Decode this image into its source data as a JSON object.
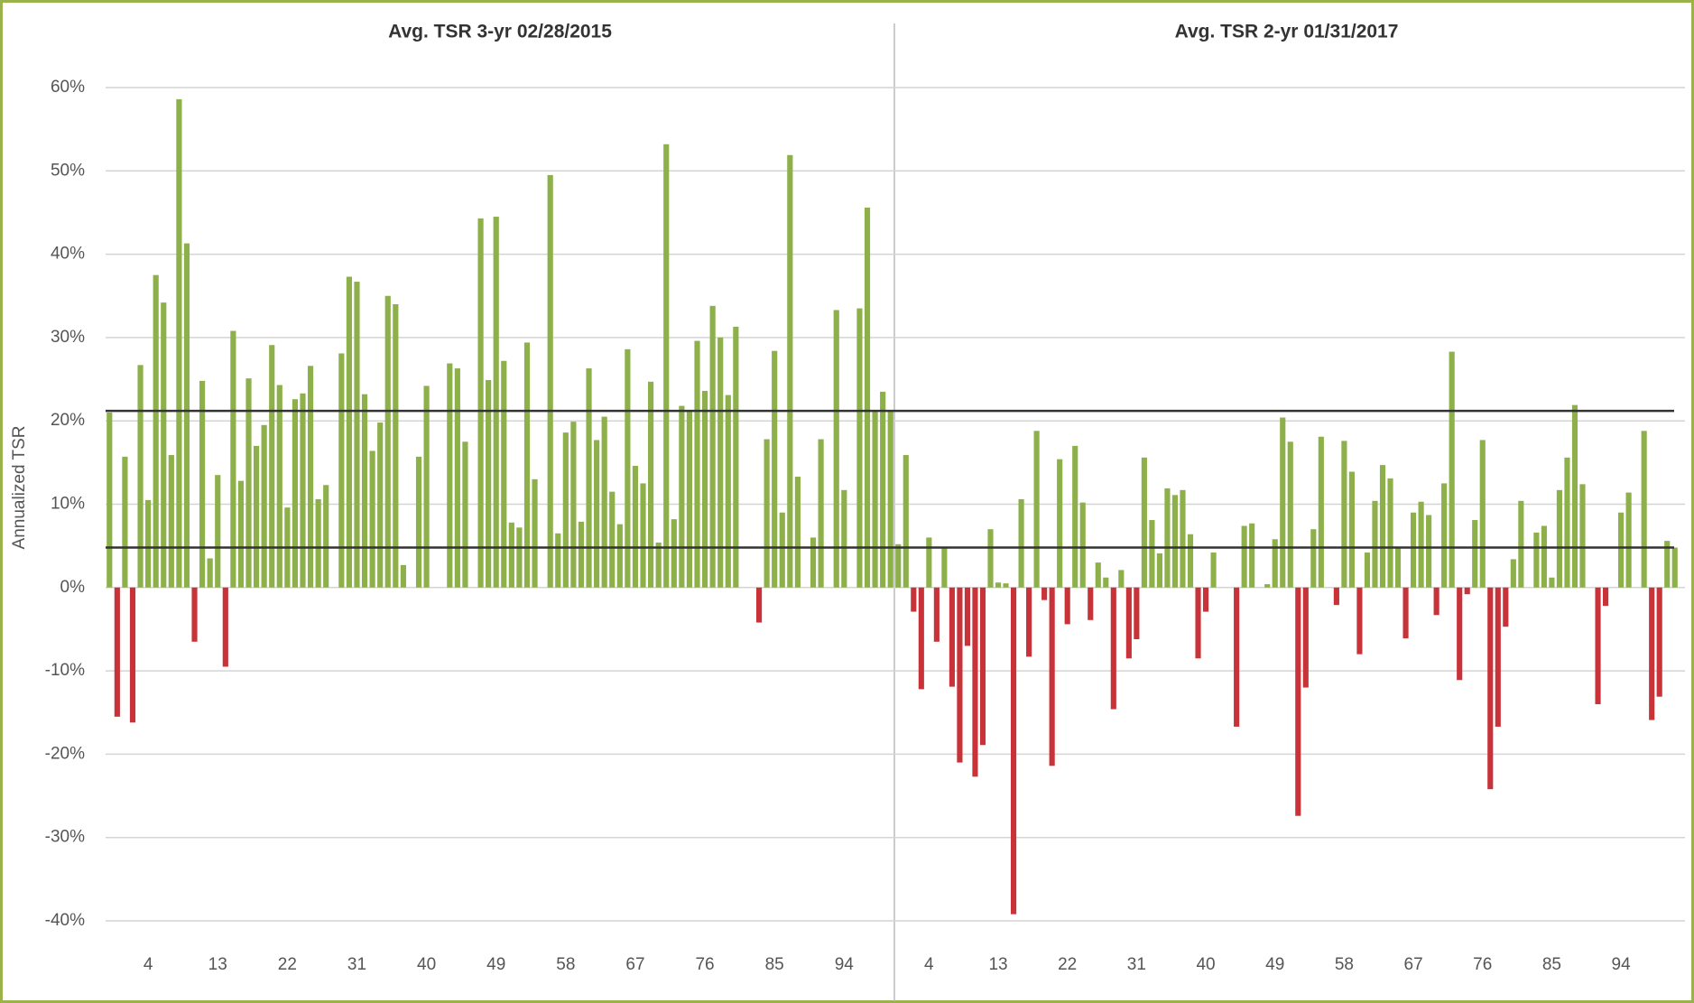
{
  "chart_data": {
    "type": "bar",
    "ylabel": "Annualized TSR",
    "ylim": [
      -40,
      60
    ],
    "yticks": [
      {
        "value": -40,
        "label": "-40%"
      },
      {
        "value": -30,
        "label": "-30%"
      },
      {
        "value": -20,
        "label": "-20%"
      },
      {
        "value": -10,
        "label": "-10%"
      },
      {
        "value": 0,
        "label": "0%"
      },
      {
        "value": 10,
        "label": "10%"
      },
      {
        "value": 20,
        "label": "20%"
      },
      {
        "value": 30,
        "label": "30%"
      },
      {
        "value": 40,
        "label": "40%"
      },
      {
        "value": 50,
        "label": "50%"
      },
      {
        "value": 60,
        "label": "60%"
      }
    ],
    "grid": true,
    "positive_color": "#8db04a",
    "negative_color": "#c8333a",
    "reference_lines": [
      21.2,
      4.8
    ],
    "panels": [
      {
        "title": "Avg. TSR 3-yr 02/28/2015",
        "categories": [
          null,
          null,
          null,
          null,
          null,
          "4",
          null,
          null,
          null,
          null,
          null,
          null,
          null,
          null,
          "13",
          null,
          null,
          null,
          null,
          null,
          null,
          null,
          null,
          "22",
          null,
          null,
          null,
          null,
          null,
          null,
          null,
          null,
          "31",
          null,
          null,
          null,
          null,
          null,
          null,
          null,
          null,
          "40",
          null,
          null,
          null,
          null,
          null,
          null,
          null,
          null,
          "49",
          null,
          null,
          null,
          null,
          null,
          null,
          null,
          null,
          "58",
          null,
          null,
          null,
          null,
          null,
          null,
          null,
          null,
          "67",
          null,
          null,
          null,
          null,
          null,
          null,
          null,
          null,
          "76",
          null,
          null,
          null,
          null,
          null,
          null,
          null,
          null,
          "85",
          null,
          null,
          null,
          null,
          null,
          null,
          null,
          null,
          "94",
          null,
          null,
          null,
          null,
          null,
          null
        ],
        "values": [
          21,
          -15.5,
          15.7,
          -16.2,
          26.7,
          10.5,
          37.5,
          34.2,
          15.9,
          58.6,
          41.3,
          -6.5,
          24.8,
          3.5,
          13.5,
          -9.5,
          30.8,
          12.8,
          25.1,
          17,
          19.5,
          29.1,
          24.3,
          9.6,
          22.6,
          23.3,
          26.6,
          10.6,
          12.3,
          0,
          28.1,
          37.3,
          36.7,
          23.2,
          16.4,
          19.8,
          35,
          34,
          2.7,
          0,
          15.7,
          24.2,
          0,
          0,
          26.9,
          26.3,
          17.5,
          0,
          44.3,
          24.9,
          44.5,
          27.2,
          7.8,
          7.2,
          29.4,
          13,
          0,
          49.5,
          6.5,
          18.6,
          19.9,
          7.9,
          26.3,
          17.7,
          20.5,
          11.5,
          7.6,
          28.6,
          14.6,
          12.5,
          24.7,
          5.4,
          53.2,
          8.2,
          21.8,
          21.1,
          29.6,
          23.6,
          33.8,
          30,
          23.1,
          31.3,
          0,
          0,
          -4.2,
          17.8,
          28.4,
          9,
          51.9,
          13.3,
          0,
          6,
          17.8,
          0,
          33.3,
          11.7,
          0,
          33.5,
          45.6,
          21.3,
          23.5,
          21.2
        ]
      },
      {
        "title": "Avg. TSR 2-yr 01/31/2017",
        "categories": [
          null,
          null,
          null,
          null,
          "4",
          null,
          null,
          null,
          null,
          null,
          null,
          null,
          null,
          "13",
          null,
          null,
          null,
          null,
          null,
          null,
          null,
          null,
          "22",
          null,
          null,
          null,
          null,
          null,
          null,
          null,
          null,
          "31",
          null,
          null,
          null,
          null,
          null,
          null,
          null,
          null,
          "40",
          null,
          null,
          null,
          null,
          null,
          null,
          null,
          null,
          "49",
          null,
          null,
          null,
          null,
          null,
          null,
          null,
          null,
          "58",
          null,
          null,
          null,
          null,
          null,
          null,
          null,
          null,
          "67",
          null,
          null,
          null,
          null,
          null,
          null,
          null,
          null,
          "76",
          null,
          null,
          null,
          null,
          null,
          null,
          null,
          null,
          "85",
          null,
          null,
          null,
          null,
          null,
          null,
          null,
          null,
          "94",
          null,
          null,
          null,
          null,
          null,
          null,
          null
        ],
        "values": [
          5.2,
          15.9,
          -2.9,
          -12.2,
          6,
          -6.5,
          4.8,
          -11.9,
          -21,
          -7,
          -22.7,
          -18.9,
          7,
          0.6,
          0.5,
          -39.2,
          10.6,
          -8.3,
          18.8,
          -1.5,
          -21.4,
          15.4,
          -4.4,
          17,
          10.2,
          -3.9,
          3,
          1.2,
          -14.6,
          2.1,
          -8.5,
          -6.2,
          15.6,
          8.1,
          4.1,
          11.9,
          11.1,
          11.7,
          6.4,
          -8.5,
          -2.9,
          4.2,
          0,
          0,
          -16.7,
          7.4,
          7.7,
          0,
          0.4,
          5.8,
          20.4,
          17.5,
          -27.4,
          -12,
          7,
          18.1,
          0,
          -2.1,
          17.6,
          13.9,
          -8,
          4.2,
          10.4,
          14.7,
          13.1,
          4.8,
          -6.1,
          9,
          10.3,
          8.7,
          -3.3,
          12.5,
          28.3,
          -11.1,
          -0.8,
          8.1,
          17.7,
          -24.2,
          -16.7,
          -4.7,
          3.4,
          10.4,
          0,
          6.6,
          7.4,
          1.2,
          11.7,
          15.6,
          21.9,
          12.4,
          0,
          -14,
          -2.2,
          0,
          9,
          11.4,
          0,
          18.8,
          -15.9,
          -13.1,
          5.6,
          4.8
        ]
      }
    ]
  }
}
